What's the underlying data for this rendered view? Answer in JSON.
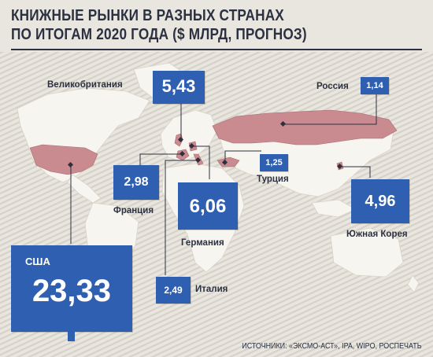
{
  "title_line1": "КНИЖНЫЕ РЫНКИ В РАЗНЫХ СТРАНАХ",
  "title_line2": "ПО ИТОГАМ 2020 ГОДА ($ МЛРД, ПРОГНОЗ)",
  "source": "ИСТОЧНИКИ: «ЭКСМО-АСТ», IPA, WIPO, РОСПЕЧАТЬ",
  "colors": {
    "book": "#2f5fb0",
    "highlight": "#c98b8f",
    "land": "#f7f5f0",
    "stripes": "#d3cfc6",
    "text": "#2b3140"
  },
  "markets": [
    {
      "key": "uk",
      "country": "Великобритания",
      "value": "5,43"
    },
    {
      "key": "russia",
      "country": "Россия",
      "value": "1,14"
    },
    {
      "key": "turkey",
      "country": "Турция",
      "value": "1,25"
    },
    {
      "key": "france",
      "country": "Франция",
      "value": "2,98"
    },
    {
      "key": "germany",
      "country": "Германия",
      "value": "6,06"
    },
    {
      "key": "korea",
      "country": "Южная Корея",
      "value": "4,96"
    },
    {
      "key": "usa",
      "country": "США",
      "value": "23,33"
    },
    {
      "key": "italy",
      "country": "Италия",
      "value": "2,49"
    }
  ]
}
